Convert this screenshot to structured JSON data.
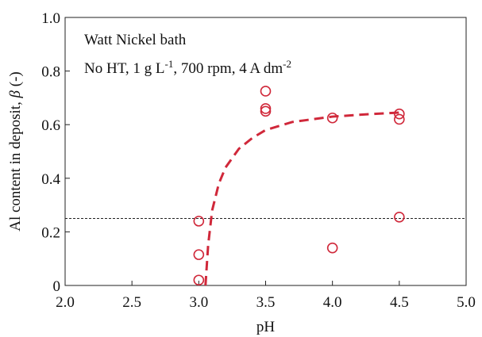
{
  "chart_data": {
    "type": "scatter",
    "annotations": [
      [
        {
          "text": "Watt   Nickel bath"
        }
      ],
      [
        {
          "text": "No HT, 1 g L"
        },
        {
          "text": "-1",
          "sup": true
        },
        {
          "text": ", 700 rpm, 4 A dm"
        },
        {
          "text": "-2",
          "sup": true
        }
      ]
    ],
    "x_label": "pH",
    "y_label": [
      {
        "text": "Al content in deposit, "
      },
      {
        "text": "β",
        "italic": true
      },
      {
        "text": " (-)"
      }
    ],
    "xlim": [
      2.0,
      5.0
    ],
    "ylim": [
      0,
      1.0
    ],
    "xticks": [
      {
        "value": 2.0,
        "label": "2.0"
      },
      {
        "value": 2.5,
        "label": "2.5"
      },
      {
        "value": 3.0,
        "label": "3.0"
      },
      {
        "value": 3.5,
        "label": "3.5"
      },
      {
        "value": 4.0,
        "label": "4.0"
      },
      {
        "value": 4.5,
        "label": "4.5"
      },
      {
        "value": 5.0,
        "label": "5.0"
      }
    ],
    "yticks": [
      0,
      0.2,
      0.4,
      0.6,
      0.8,
      {
        "value": 1.0,
        "label": "1.0"
      }
    ],
    "hline": 0.25,
    "hline_color": "#222222",
    "series": [
      {
        "type": "scatter",
        "color": "#d0283a",
        "x": [
          3.0,
          3.0,
          3.0,
          3.5,
          3.5,
          3.5,
          4.0,
          4.0,
          4.5,
          4.5,
          4.5
        ],
        "values": [
          0.24,
          0.115,
          0.02,
          0.725,
          0.66,
          0.65,
          0.625,
          0.14,
          0.64,
          0.62,
          0.255
        ]
      },
      {
        "type": "line",
        "dashed": true,
        "color": "#d0283a",
        "x": [
          3.05,
          3.07,
          3.1,
          3.15,
          3.2,
          3.3,
          3.4,
          3.5,
          3.7,
          4.0,
          4.3,
          4.5
        ],
        "values": [
          0,
          0.15,
          0.28,
          0.38,
          0.44,
          0.51,
          0.55,
          0.58,
          0.61,
          0.63,
          0.64,
          0.645
        ]
      }
    ]
  }
}
